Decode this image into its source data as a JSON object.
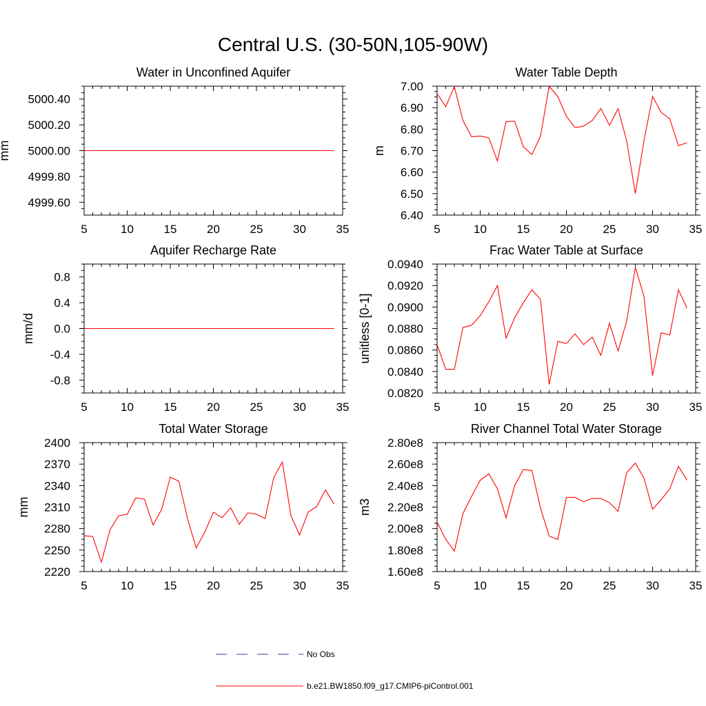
{
  "title": "Central U.S. (30-50N,105-90W)",
  "legend": [
    {
      "label": "No Obs",
      "color": "#3a3aa0",
      "style": "dashed"
    },
    {
      "label": "b.e21.BW1850.f09_g17.CMIP6-piControl.001",
      "color": "#ff0000",
      "style": "solid"
    }
  ],
  "chart_data": [
    {
      "type": "line",
      "title": "Water in Unconfined Aquifer",
      "ylabel": "mm",
      "xlim": [
        5,
        35
      ],
      "xticks": [
        5,
        10,
        15,
        20,
        25,
        30,
        35
      ],
      "ylim": [
        4999.5,
        5000.5
      ],
      "yticks": [
        4999.6,
        4999.8,
        5000.0,
        5000.2,
        5000.4
      ],
      "ytick_labels": [
        "4999.60",
        "4999.80",
        "5000.00",
        "5000.20",
        "5000.40"
      ],
      "x": [
        5,
        6,
        7,
        8,
        9,
        10,
        11,
        12,
        13,
        14,
        15,
        16,
        17,
        18,
        19,
        20,
        21,
        22,
        23,
        24,
        25,
        26,
        27,
        28,
        29,
        30,
        31,
        32,
        33,
        34
      ],
      "series": [
        {
          "name": "b.e21.BW1850.f09_g17.CMIP6-piControl.001",
          "color": "#ff0000",
          "values": [
            5000,
            5000,
            5000,
            5000,
            5000,
            5000,
            5000,
            5000,
            5000,
            5000,
            5000,
            5000,
            5000,
            5000,
            5000,
            5000,
            5000,
            5000,
            5000,
            5000,
            5000,
            5000,
            5000,
            5000,
            5000,
            5000,
            5000,
            5000,
            5000,
            5000
          ]
        }
      ]
    },
    {
      "type": "line",
      "title": "Water Table Depth",
      "ylabel": "m",
      "xlim": [
        5,
        35
      ],
      "xticks": [
        5,
        10,
        15,
        20,
        25,
        30,
        35
      ],
      "ylim": [
        6.4,
        7.0
      ],
      "yticks": [
        6.4,
        6.5,
        6.6,
        6.7,
        6.8,
        6.9,
        7.0
      ],
      "ytick_labels": [
        "6.40",
        "6.50",
        "6.60",
        "6.70",
        "6.80",
        "6.90",
        "7.00"
      ],
      "x": [
        5,
        6,
        7,
        8,
        9,
        10,
        11,
        12,
        13,
        14,
        15,
        16,
        17,
        18,
        19,
        20,
        21,
        22,
        23,
        24,
        25,
        26,
        27,
        28,
        29,
        30,
        31,
        32,
        33,
        34
      ],
      "series": [
        {
          "name": "b.e21.BW1850.f09_g17.CMIP6-piControl.001",
          "color": "#ff0000",
          "values": [
            6.965,
            6.905,
            6.998,
            6.84,
            6.765,
            6.768,
            6.76,
            6.652,
            6.835,
            6.837,
            6.718,
            6.682,
            6.768,
            7.0,
            6.952,
            6.86,
            6.807,
            6.814,
            6.84,
            6.896,
            6.818,
            6.895,
            6.745,
            6.5,
            6.745,
            6.952,
            6.878,
            6.848,
            6.723,
            6.737
          ]
        }
      ]
    },
    {
      "type": "line",
      "title": "Aquifer Recharge Rate",
      "ylabel": "mm/d",
      "xlim": [
        5,
        35
      ],
      "xticks": [
        5,
        10,
        15,
        20,
        25,
        30,
        35
      ],
      "ylim": [
        -1.0,
        1.0
      ],
      "yticks": [
        -0.8,
        -0.4,
        0.0,
        0.4,
        0.8
      ],
      "ytick_labels": [
        "-0.8",
        "-0.4",
        "0.0",
        "0.4",
        "0.8"
      ],
      "x": [
        5,
        6,
        7,
        8,
        9,
        10,
        11,
        12,
        13,
        14,
        15,
        16,
        17,
        18,
        19,
        20,
        21,
        22,
        23,
        24,
        25,
        26,
        27,
        28,
        29,
        30,
        31,
        32,
        33,
        34
      ],
      "series": [
        {
          "name": "b.e21.BW1850.f09_g17.CMIP6-piControl.001",
          "color": "#ff0000",
          "values": [
            0,
            0,
            0,
            0,
            0,
            0,
            0,
            0,
            0,
            0,
            0,
            0,
            0,
            0,
            0,
            0,
            0,
            0,
            0,
            0,
            0,
            0,
            0,
            0,
            0,
            0,
            0,
            0,
            0,
            0
          ]
        }
      ]
    },
    {
      "type": "line",
      "title": "Frac Water Table at Surface",
      "ylabel": "unitless [0-1]",
      "xlim": [
        5,
        35
      ],
      "xticks": [
        5,
        10,
        15,
        20,
        25,
        30,
        35
      ],
      "ylim": [
        0.082,
        0.094
      ],
      "yticks": [
        0.082,
        0.084,
        0.086,
        0.088,
        0.09,
        0.092,
        0.094
      ],
      "ytick_labels": [
        "0.0820",
        "0.0840",
        "0.0860",
        "0.0880",
        "0.0900",
        "0.0920",
        "0.0940"
      ],
      "x": [
        5,
        6,
        7,
        8,
        9,
        10,
        11,
        12,
        13,
        14,
        15,
        16,
        17,
        18,
        19,
        20,
        21,
        22,
        23,
        24,
        25,
        26,
        27,
        28,
        29,
        30,
        31,
        32,
        33,
        34
      ],
      "series": [
        {
          "name": "b.e21.BW1850.f09_g17.CMIP6-piControl.001",
          "color": "#ff0000",
          "values": [
            0.0865,
            0.0842,
            0.0842,
            0.0881,
            0.0883,
            0.0892,
            0.0905,
            0.092,
            0.0871,
            0.089,
            0.0904,
            0.0916,
            0.0907,
            0.0828,
            0.0868,
            0.0866,
            0.0875,
            0.0865,
            0.0872,
            0.0855,
            0.0885,
            0.0859,
            0.0887,
            0.0937,
            0.091,
            0.0836,
            0.0876,
            0.0874,
            0.0916,
            0.0899
          ]
        }
      ]
    },
    {
      "type": "line",
      "title": "Total Water Storage",
      "ylabel": "mm",
      "xlim": [
        5,
        35
      ],
      "xticks": [
        5,
        10,
        15,
        20,
        25,
        30,
        35
      ],
      "ylim": [
        2220,
        2400
      ],
      "yticks": [
        2220,
        2250,
        2280,
        2310,
        2340,
        2370,
        2400
      ],
      "ytick_labels": [
        "2220",
        "2250",
        "2280",
        "2310",
        "2340",
        "2370",
        "2400"
      ],
      "x": [
        5,
        6,
        7,
        8,
        9,
        10,
        11,
        12,
        13,
        14,
        15,
        16,
        17,
        18,
        19,
        20,
        21,
        22,
        23,
        24,
        25,
        26,
        27,
        28,
        29,
        30,
        31,
        32,
        33,
        34
      ],
      "series": [
        {
          "name": "b.e21.BW1850.f09_g17.CMIP6-piControl.001",
          "color": "#ff0000",
          "values": [
            2270,
            2269,
            2233,
            2278,
            2298,
            2300,
            2323,
            2321,
            2285,
            2307,
            2352,
            2346,
            2294,
            2253,
            2275,
            2303,
            2295,
            2309,
            2286,
            2302,
            2300,
            2294,
            2351,
            2373,
            2298,
            2271,
            2303,
            2311,
            2334,
            2314
          ]
        }
      ]
    },
    {
      "type": "line",
      "title": "River Channel Total Water Storage",
      "ylabel": "m3",
      "xlim": [
        5,
        35
      ],
      "xticks": [
        5,
        10,
        15,
        20,
        25,
        30,
        35
      ],
      "ylim": [
        160000000,
        280000000
      ],
      "yticks": [
        160000000,
        180000000,
        200000000,
        220000000,
        240000000,
        260000000,
        280000000
      ],
      "ytick_labels": [
        "1.60e8",
        "1.80e8",
        "2.00e8",
        "2.20e8",
        "2.40e8",
        "2.60e8",
        "2.80e8"
      ],
      "x": [
        5,
        6,
        7,
        8,
        9,
        10,
        11,
        12,
        13,
        14,
        15,
        16,
        17,
        18,
        19,
        20,
        21,
        22,
        23,
        24,
        25,
        26,
        27,
        28,
        29,
        30,
        31,
        32,
        33,
        34
      ],
      "series": [
        {
          "name": "b.e21.BW1850.f09_g17.CMIP6-piControl.001",
          "color": "#ff0000",
          "values": [
            206000000,
            190000000,
            179000000,
            214000000,
            230000000,
            245000000,
            251000000,
            237000000,
            210000000,
            240000000,
            255000000,
            254000000,
            219000000,
            193000000,
            190000000,
            229000000,
            229000000,
            225000000,
            228000000,
            228000000,
            224000000,
            216000000,
            252000000,
            261000000,
            247000000,
            218000000,
            227000000,
            237000000,
            258000000,
            245000000
          ]
        }
      ]
    }
  ]
}
